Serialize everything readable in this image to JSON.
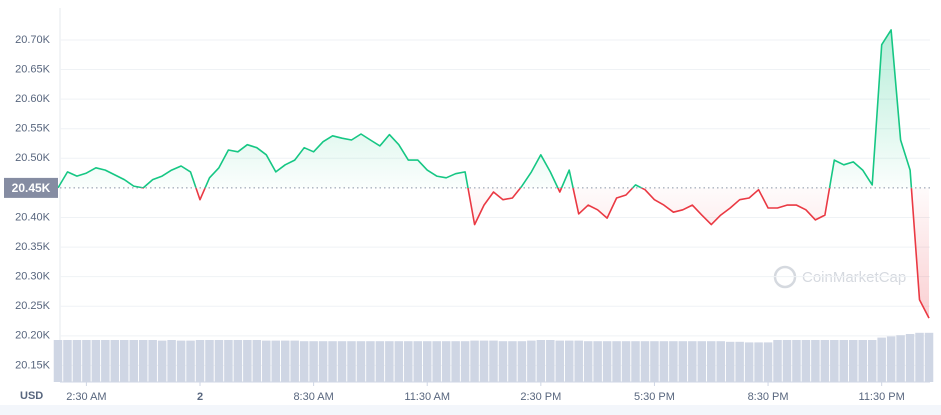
{
  "chart_data": {
    "type": "line",
    "currency": "USD",
    "watermark": "CoinMarketCap",
    "baseline": {
      "value": 20450,
      "label": "20.45K"
    },
    "categories": [
      null,
      null,
      null,
      "2:30 AM",
      null,
      null,
      null,
      null,
      null,
      null,
      null,
      null,
      null,
      null,
      null,
      "2",
      null,
      null,
      null,
      null,
      null,
      null,
      null,
      null,
      null,
      null,
      null,
      "8:30 AM",
      null,
      null,
      null,
      null,
      null,
      null,
      null,
      null,
      null,
      null,
      null,
      "11:30 AM",
      null,
      null,
      null,
      null,
      null,
      null,
      null,
      null,
      null,
      null,
      null,
      "2:30 PM",
      null,
      null,
      null,
      null,
      null,
      null,
      null,
      null,
      null,
      null,
      null,
      "5:30 PM",
      null,
      null,
      null,
      null,
      null,
      null,
      null,
      null,
      null,
      null,
      null,
      "8:30 PM",
      null,
      null,
      null,
      null,
      null,
      null,
      null,
      null,
      null,
      null,
      null,
      "11:30 PM",
      null,
      null,
      null,
      null,
      null
    ],
    "series": [
      {
        "name": "Price",
        "color_up": "#16c784",
        "color_down": "#ea3943",
        "values": [
          20450,
          20477,
          20470,
          20475,
          20484,
          20480,
          20472,
          20464,
          20453,
          20450,
          20464,
          20470,
          20480,
          20487,
          20477,
          20430,
          20467,
          20484,
          20514,
          20511,
          20523,
          20518,
          20506,
          20477,
          20489,
          20497,
          20518,
          20511,
          20528,
          20538,
          20534,
          20531,
          20541,
          20531,
          20521,
          20540,
          20523,
          20497,
          20497,
          20480,
          20470,
          20467,
          20474,
          20477,
          20388,
          20421,
          20443,
          20430,
          20433,
          20453,
          20477,
          20506,
          20477,
          20443,
          20480,
          20406,
          20421,
          20413,
          20399,
          20433,
          20438,
          20455,
          20447,
          20430,
          20421,
          20409,
          20413,
          20421,
          20404,
          20388,
          20404,
          20416,
          20430,
          20433,
          20447,
          20416,
          20416,
          20421,
          20421,
          20413,
          20396,
          20404,
          20497,
          20489,
          20494,
          20480,
          20455,
          20692,
          20717,
          20531,
          20480,
          20261,
          20230
        ]
      },
      {
        "name": "Volume",
        "axis": "y2",
        "color": "#cfd6e4",
        "values": [
          70,
          70,
          70,
          70,
          70,
          70,
          70,
          70,
          70,
          70,
          70,
          69,
          70,
          69,
          69,
          70,
          70,
          70,
          70,
          70,
          70,
          70,
          69,
          69,
          69,
          69,
          68,
          68,
          68,
          68,
          68,
          68,
          68,
          68,
          68,
          68,
          68,
          68,
          68,
          68,
          68,
          68,
          68,
          68,
          69,
          69,
          69,
          68,
          68,
          68,
          69,
          70,
          70,
          69,
          69,
          69,
          68,
          68,
          68,
          68,
          68,
          68,
          68,
          68,
          68,
          68,
          68,
          68,
          68,
          68,
          68,
          67,
          67,
          66,
          66,
          66,
          70,
          70,
          70,
          70,
          70,
          70,
          70,
          70,
          70,
          70,
          70,
          74,
          76,
          78,
          80,
          82,
          82
        ]
      }
    ],
    "ylim": [
      20122,
      20754
    ],
    "yticks": [
      {
        "value": 20150,
        "label": "20.15K"
      },
      {
        "value": 20200,
        "label": "20.20K"
      },
      {
        "value": 20250,
        "label": "20.25K"
      },
      {
        "value": 20300,
        "label": "20.30K"
      },
      {
        "value": 20350,
        "label": "20.35K"
      },
      {
        "value": 20400,
        "label": "20.40K"
      },
      {
        "value": 20500,
        "label": "20.50K"
      },
      {
        "value": 20550,
        "label": "20.55K"
      },
      {
        "value": 20600,
        "label": "20.60K"
      },
      {
        "value": 20650,
        "label": "20.65K"
      },
      {
        "value": 20700,
        "label": "20.70K"
      }
    ],
    "y2lim": [
      0,
      100
    ],
    "grid": true
  }
}
